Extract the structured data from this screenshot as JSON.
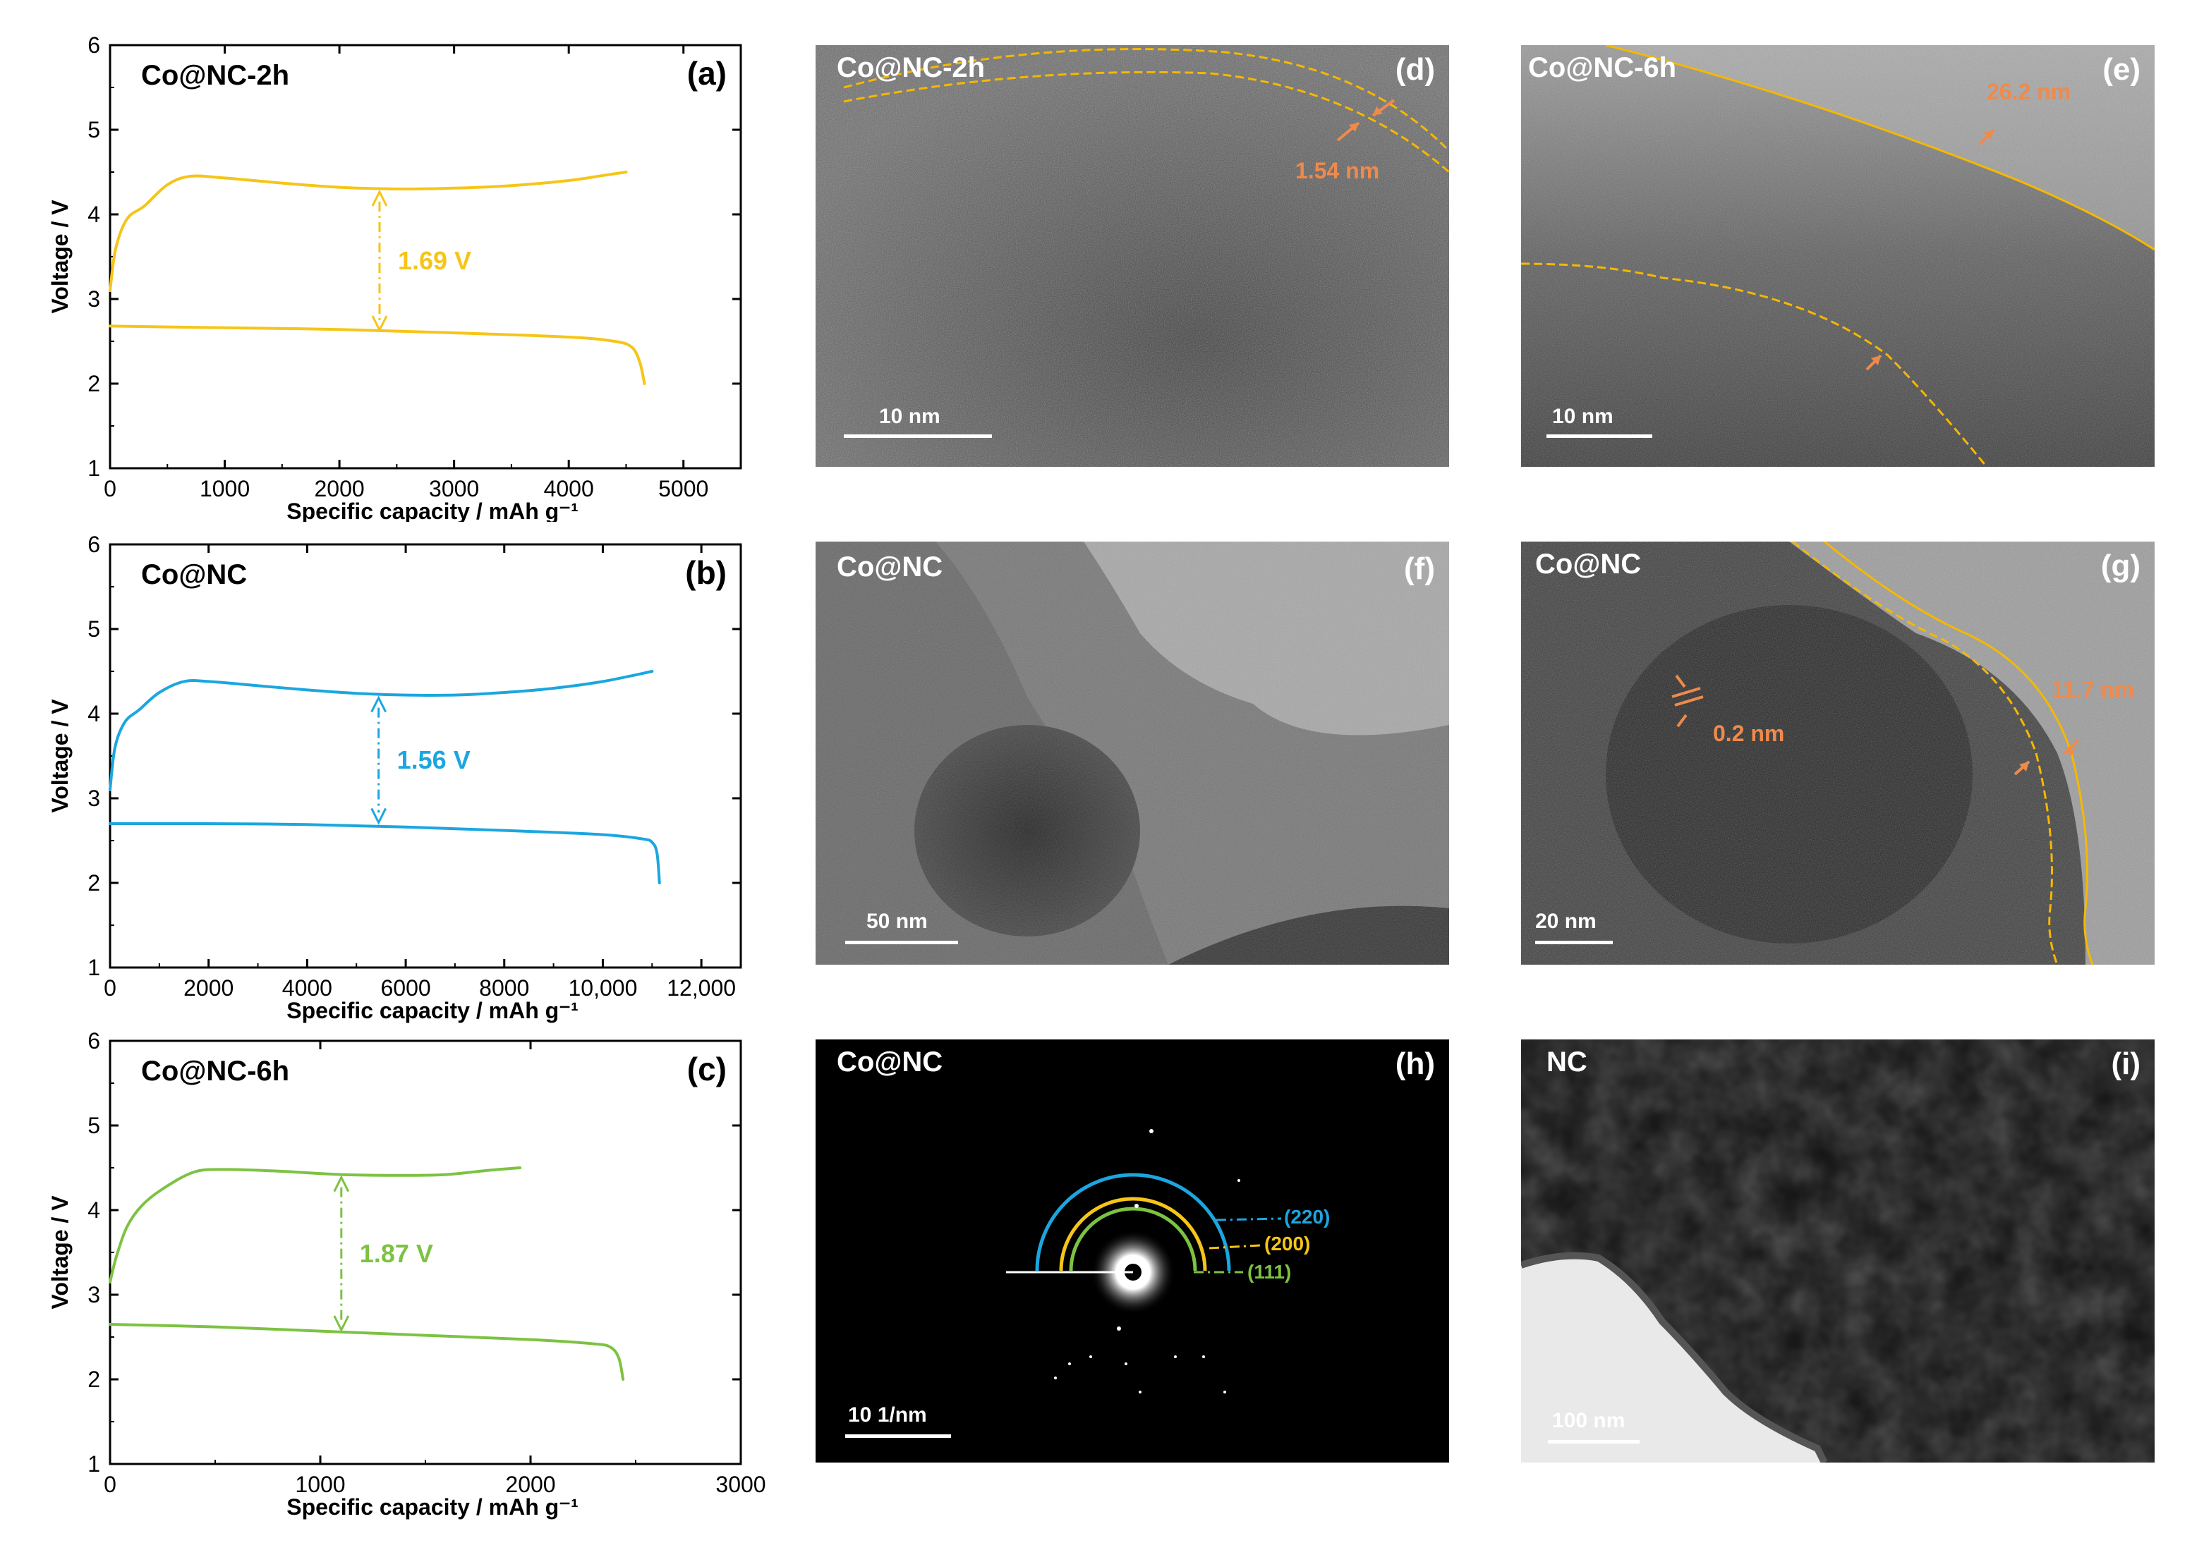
{
  "chart_data": [
    {
      "type": "line",
      "panel": "(a)",
      "sample": "Co@NC-2h",
      "xlabel": "Specific capacity / mAh g⁻¹",
      "ylabel": "Voltage / V",
      "xlim": [
        0,
        5500
      ],
      "ylim": [
        1,
        6
      ],
      "xticks": [
        0,
        1000,
        2000,
        3000,
        4000,
        5000
      ],
      "xtick_labels": [
        "0",
        "1000",
        "2000",
        "3000",
        "4000",
        "5000"
      ],
      "yticks": [
        1,
        2,
        3,
        4,
        5,
        6
      ],
      "color": "#F5C518",
      "gap_label": "1.69 V",
      "gap_x": 2350,
      "gap_y": [
        2.6,
        4.3
      ],
      "series": [
        {
          "x": [
            0,
            50,
            150,
            300,
            500,
            700,
            1000,
            1500,
            2000,
            2500,
            3000,
            3500,
            4000,
            4300,
            4500
          ],
          "y": [
            3.1,
            3.6,
            3.95,
            4.1,
            4.35,
            4.45,
            4.43,
            4.37,
            4.32,
            4.3,
            4.31,
            4.34,
            4.4,
            4.46,
            4.5
          ]
        },
        {
          "x": [
            0,
            500,
            1000,
            2000,
            3000,
            4000,
            4400,
            4550,
            4620,
            4660
          ],
          "y": [
            2.68,
            2.67,
            2.66,
            2.64,
            2.6,
            2.55,
            2.5,
            2.43,
            2.25,
            2.0
          ]
        }
      ]
    },
    {
      "type": "line",
      "panel": "(b)",
      "sample": "Co@NC",
      "xlabel": "Specific capacity / mAh g⁻¹",
      "ylabel": "Voltage / V",
      "xlim": [
        0,
        12800
      ],
      "ylim": [
        1,
        6
      ],
      "xticks": [
        0,
        2000,
        4000,
        6000,
        8000,
        10000,
        12000
      ],
      "xtick_labels": [
        "0",
        "2000",
        "4000",
        "6000",
        "8000",
        "10,000",
        "12,000"
      ],
      "yticks": [
        1,
        2,
        3,
        4,
        5,
        6
      ],
      "color": "#1BA6E0",
      "gap_label": "1.56 V",
      "gap_x": 5450,
      "gap_y": [
        2.68,
        4.22
      ],
      "series": [
        {
          "x": [
            0,
            100,
            300,
            600,
            1000,
            1500,
            2000,
            3000,
            4000,
            5000,
            6000,
            7000,
            8000,
            9000,
            10000,
            11000
          ],
          "y": [
            3.1,
            3.6,
            3.9,
            4.05,
            4.25,
            4.38,
            4.38,
            4.33,
            4.28,
            4.24,
            4.22,
            4.22,
            4.25,
            4.3,
            4.38,
            4.5
          ]
        },
        {
          "x": [
            0,
            1000,
            2000,
            4000,
            6000,
            8000,
            10000,
            10800,
            11000,
            11100,
            11150
          ],
          "y": [
            2.7,
            2.7,
            2.7,
            2.69,
            2.66,
            2.62,
            2.57,
            2.52,
            2.48,
            2.35,
            2.0
          ]
        }
      ]
    },
    {
      "type": "line",
      "panel": "(c)",
      "sample": "Co@NC-6h",
      "xlabel": "Specific capacity / mAh g⁻¹",
      "ylabel": "Voltage / V",
      "xlim": [
        0,
        3000
      ],
      "ylim": [
        1,
        6
      ],
      "xticks": [
        0,
        1000,
        2000,
        3000
      ],
      "xtick_labels": [
        "0",
        "1000",
        "2000",
        "3000"
      ],
      "yticks": [
        1,
        2,
        3,
        4,
        5,
        6
      ],
      "color": "#7DC242",
      "gap_label": "1.87 V",
      "gap_x": 1100,
      "gap_y": [
        2.55,
        4.42
      ],
      "series": [
        {
          "x": [
            0,
            30,
            80,
            150,
            250,
            400,
            550,
            800,
            1100,
            1400,
            1600,
            1800,
            1950
          ],
          "y": [
            3.15,
            3.45,
            3.8,
            4.05,
            4.25,
            4.45,
            4.48,
            4.46,
            4.42,
            4.41,
            4.42,
            4.47,
            4.5
          ]
        },
        {
          "x": [
            0,
            500,
            1000,
            1500,
            2000,
            2300,
            2380,
            2420,
            2440
          ],
          "y": [
            2.65,
            2.62,
            2.57,
            2.52,
            2.47,
            2.42,
            2.38,
            2.25,
            2.0
          ]
        }
      ]
    }
  ],
  "micrographs": [
    {
      "panel": "(d)",
      "sample": "Co@NC-2h",
      "scale_bar": "10 nm",
      "annotations": [
        "1.54 nm"
      ]
    },
    {
      "panel": "(e)",
      "sample": "Co@NC-6h",
      "scale_bar": "10 nm",
      "annotations": [
        "26.2 nm"
      ]
    },
    {
      "panel": "(f)",
      "sample": "Co@NC",
      "scale_bar": "50 nm",
      "annotations": []
    },
    {
      "panel": "(g)",
      "sample": "Co@NC",
      "scale_bar": "20 nm",
      "annotations": [
        "0.2 nm",
        "11.7 nm"
      ]
    },
    {
      "panel": "(h)",
      "sample": "Co@NC",
      "scale_bar": "10 1/nm",
      "annotations": [
        "(220)",
        "(200)",
        "(111)"
      ]
    },
    {
      "panel": "(i)",
      "sample": "NC",
      "scale_bar": "100 nm",
      "annotations": []
    }
  ],
  "colors": {
    "yellow": "#F5C518",
    "blue": "#1BA6E0",
    "green": "#7DC242",
    "orange": "#F08A4B",
    "dashed_yellow": "#E8B400"
  }
}
